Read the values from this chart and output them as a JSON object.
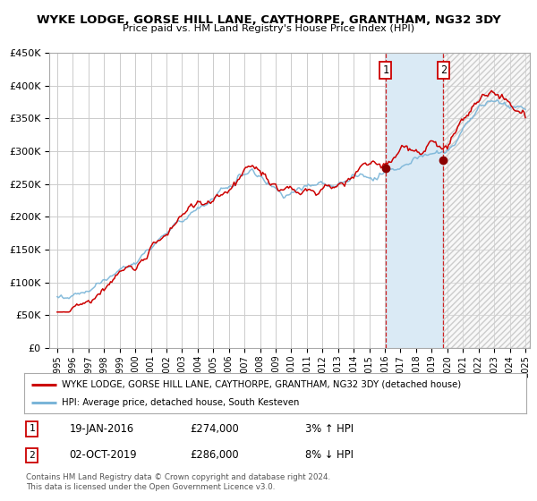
{
  "title": "WYKE LODGE, GORSE HILL LANE, CAYTHORPE, GRANTHAM, NG32 3DY",
  "subtitle": "Price paid vs. HM Land Registry's House Price Index (HPI)",
  "legend_line1": "WYKE LODGE, GORSE HILL LANE, CAYTHORPE, GRANTHAM, NG32 3DY (detached house)",
  "legend_line2": "HPI: Average price, detached house, South Kesteven",
  "annotation1_date": "19-JAN-2016",
  "annotation1_price": "£274,000",
  "annotation1_hpi": "3% ↑ HPI",
  "annotation2_date": "02-OCT-2019",
  "annotation2_price": "£286,000",
  "annotation2_hpi": "8% ↓ HPI",
  "footer": "Contains HM Land Registry data © Crown copyright and database right 2024.\nThis data is licensed under the Open Government Licence v3.0.",
  "hpi_color": "#7ab5d8",
  "price_color": "#cc0000",
  "marker_color": "#8b0000",
  "background_color": "#ffffff",
  "grid_color": "#cccccc",
  "highlight_color": "#daeaf5",
  "ylim": [
    0,
    450000
  ],
  "yticks": [
    0,
    50000,
    100000,
    150000,
    200000,
    250000,
    300000,
    350000,
    400000,
    450000
  ],
  "sale1_x": 2016.05,
  "sale1_y": 274000,
  "sale2_x": 2019.75,
  "sale2_y": 286000,
  "xmin": 1995,
  "xmax": 2025
}
